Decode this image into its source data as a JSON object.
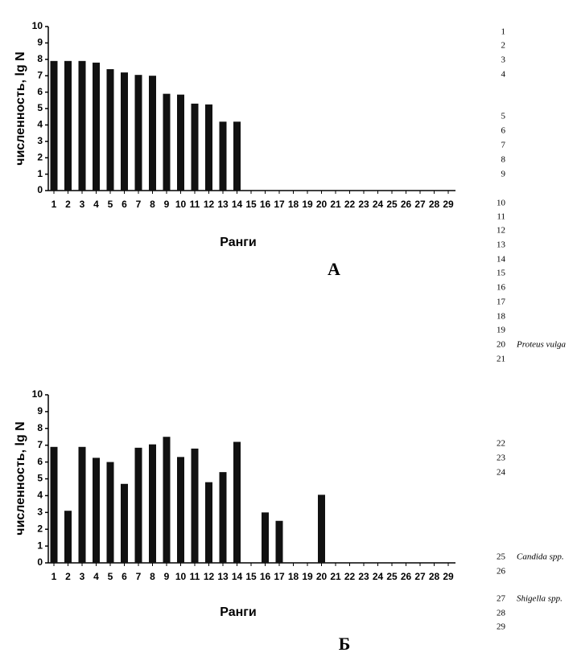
{
  "chart_data": [
    {
      "type": "bar",
      "panel_label": "А",
      "xlabel": "Ранги",
      "ylabel": "численность, lg N",
      "color": "#111111",
      "categories": [
        "1",
        "2",
        "3",
        "4",
        "5",
        "6",
        "7",
        "8",
        "9",
        "10",
        "11",
        "12",
        "13",
        "14",
        "15",
        "16",
        "17",
        "18",
        "19",
        "20",
        "21",
        "22",
        "23",
        "24",
        "25",
        "26",
        "27",
        "28",
        "29"
      ],
      "values": [
        7.9,
        7.9,
        7.9,
        7.8,
        7.4,
        7.2,
        7.05,
        7.0,
        5.9,
        5.85,
        5.3,
        5.25,
        4.2,
        4.2,
        null,
        null,
        null,
        null,
        null,
        null,
        null,
        null,
        null,
        null,
        null,
        null,
        null,
        null,
        null
      ],
      "ylim": [
        0,
        10
      ],
      "yticks": [
        0,
        1,
        2,
        3,
        4,
        5,
        6,
        7,
        8,
        9,
        10
      ]
    },
    {
      "type": "bar",
      "panel_label": "Б",
      "xlabel": "Ранги",
      "ylabel": "численность, lg N",
      "color": "#111111",
      "categories": [
        "1",
        "2",
        "3",
        "4",
        "5",
        "6",
        "7",
        "8",
        "9",
        "10",
        "11",
        "12",
        "13",
        "14",
        "15",
        "16",
        "17",
        "18",
        "19",
        "20",
        "21",
        "22",
        "23",
        "24",
        "25",
        "26",
        "27",
        "28",
        "29"
      ],
      "values": [
        6.9,
        3.1,
        6.9,
        6.25,
        6.0,
        4.7,
        6.85,
        7.05,
        7.5,
        6.3,
        6.8,
        4.8,
        5.4,
        7.2,
        null,
        3.0,
        2.5,
        null,
        null,
        4.05,
        null,
        null,
        null,
        null,
        null,
        null,
        null,
        null,
        null
      ],
      "ylim": [
        0,
        10
      ],
      "yticks": [
        0,
        1,
        2,
        3,
        4,
        5,
        6,
        7,
        8,
        9,
        10
      ]
    }
  ],
  "rank_list": {
    "items": [
      {
        "number": "1"
      },
      {
        "number": "2"
      },
      {
        "number": "3"
      },
      {
        "number": "4"
      },
      {
        "number": "5"
      },
      {
        "number": "6"
      },
      {
        "number": "7"
      },
      {
        "number": "8"
      },
      {
        "number": "9"
      },
      {
        "number": "10"
      },
      {
        "number": "11"
      },
      {
        "number": "12"
      },
      {
        "number": "13"
      },
      {
        "number": "14"
      },
      {
        "number": "15"
      },
      {
        "number": "16"
      },
      {
        "number": "17"
      },
      {
        "number": "18"
      },
      {
        "number": "19"
      },
      {
        "number": "20",
        "text": "Proteus vulga"
      },
      {
        "number": "21"
      },
      {
        "number": "22"
      },
      {
        "number": "23"
      },
      {
        "number": "24"
      },
      {
        "number": "25",
        "text": "Candida spp."
      },
      {
        "number": "26"
      },
      {
        "number": "27",
        "text": "Shigella spp."
      },
      {
        "number": "28"
      },
      {
        "number": "29"
      }
    ]
  }
}
